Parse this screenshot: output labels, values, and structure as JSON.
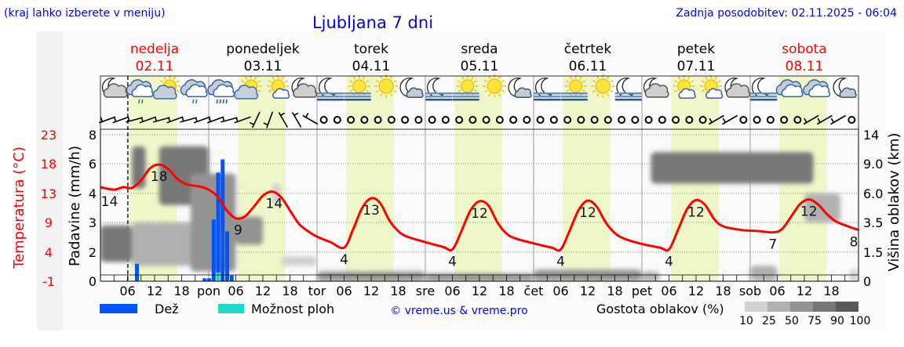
{
  "header": {
    "hint": "(kraj lahko izberete v meniju)",
    "title": "Ljubljana 7 dni",
    "updated": "Zadnja posodobitev: 02.11.2025 - 06:04"
  },
  "colors": {
    "temperature": "#ff0000",
    "rain": "#0055ff",
    "showers": "#20d8c8",
    "daylight": "#eff7c8",
    "weekend_day": "#ff0000",
    "link": "#0000ff"
  },
  "chart_data": {
    "type": "meteogram",
    "days": [
      {
        "name": "nedelja",
        "date": "02.11",
        "abbr": "",
        "weekend": true
      },
      {
        "name": "ponedeljek",
        "date": "03.11",
        "abbr": "pon",
        "weekend": false
      },
      {
        "name": "torek",
        "date": "04.11",
        "abbr": "tor",
        "weekend": false
      },
      {
        "name": "sreda",
        "date": "05.11",
        "abbr": "sre",
        "weekend": false
      },
      {
        "name": "četrtek",
        "date": "06.11",
        "abbr": "čet",
        "weekend": false
      },
      {
        "name": "petek",
        "date": "07.11",
        "abbr": "pet",
        "weekend": false
      },
      {
        "name": "sobota",
        "date": "08.11",
        "abbr": "sob",
        "weekend": true
      }
    ],
    "hour_ticks": [
      "06",
      "12",
      "18"
    ],
    "now_hour": 6.07,
    "daylight_hours": [
      6.5,
      17
    ],
    "axes": {
      "temperature": {
        "label": "Temperatura (°C)",
        "ticks": [
          -1,
          4,
          9,
          13,
          18,
          23
        ]
      },
      "precipitation": {
        "label": "Padavine (mm/h)",
        "ticks": [
          0,
          2,
          3,
          4,
          6,
          8
        ]
      },
      "cloud_height": {
        "label": "Višina oblakov (km)",
        "ticks": [
          "0",
          "1.5",
          "3.5",
          "6.0",
          "9.0",
          "14"
        ]
      }
    },
    "temperature_series": [
      [
        0,
        14.4
      ],
      [
        3,
        14.0
      ],
      [
        5,
        14.4
      ],
      [
        7,
        14.3
      ],
      [
        9,
        15.5
      ],
      [
        11,
        17.5
      ],
      [
        13,
        18.1
      ],
      [
        15,
        17.4
      ],
      [
        17,
        15.8
      ],
      [
        19,
        14.9
      ],
      [
        22,
        14.5
      ],
      [
        24,
        14.0
      ],
      [
        26,
        12.8
      ],
      [
        28,
        10.6
      ],
      [
        30,
        9.3
      ],
      [
        32,
        9.6
      ],
      [
        34,
        11.2
      ],
      [
        36,
        13.0
      ],
      [
        38,
        13.7
      ],
      [
        40,
        12.8
      ],
      [
        42,
        10.6
      ],
      [
        44,
        8.4
      ],
      [
        46,
        7.2
      ],
      [
        48,
        6.3
      ],
      [
        51,
        5.4
      ],
      [
        54,
        4.5
      ],
      [
        56,
        7.5
      ],
      [
        58,
        11.0
      ],
      [
        60,
        12.6
      ],
      [
        62,
        11.8
      ],
      [
        64,
        9.0
      ],
      [
        66,
        7.2
      ],
      [
        68,
        6.3
      ],
      [
        72,
        5.4
      ],
      [
        76,
        4.6
      ],
      [
        78,
        4.2
      ],
      [
        80,
        7.2
      ],
      [
        82,
        10.6
      ],
      [
        84,
        12.1
      ],
      [
        86,
        11.4
      ],
      [
        88,
        8.6
      ],
      [
        90,
        6.8
      ],
      [
        92,
        6.0
      ],
      [
        96,
        5.2
      ],
      [
        100,
        4.5
      ],
      [
        102,
        4.2
      ],
      [
        104,
        7.3
      ],
      [
        106,
        10.7
      ],
      [
        108,
        12.2
      ],
      [
        110,
        11.2
      ],
      [
        112,
        8.6
      ],
      [
        114,
        6.9
      ],
      [
        116,
        6.0
      ],
      [
        120,
        5.1
      ],
      [
        124,
        4.5
      ],
      [
        126,
        4.2
      ],
      [
        128,
        7.4
      ],
      [
        130,
        10.8
      ],
      [
        132,
        12.3
      ],
      [
        134,
        11.5
      ],
      [
        136,
        9.2
      ],
      [
        138,
        8.0
      ],
      [
        142,
        7.4
      ],
      [
        146,
        7.2
      ],
      [
        149,
        7.0
      ],
      [
        151,
        7.5
      ],
      [
        153,
        9.5
      ],
      [
        155,
        11.6
      ],
      [
        157,
        12.4
      ],
      [
        159,
        11.6
      ],
      [
        161,
        10.0
      ],
      [
        163,
        8.8
      ],
      [
        166,
        7.9
      ],
      [
        168,
        7.4
      ]
    ],
    "temperature_labels": [
      {
        "hour": 2,
        "value": "14",
        "pos": "below"
      },
      {
        "hour": 13,
        "value": "18",
        "pos": "below"
      },
      {
        "hour": 30.5,
        "value": "9",
        "pos": "below"
      },
      {
        "hour": 38.5,
        "value": "14",
        "pos": "below"
      },
      {
        "hour": 54,
        "value": "4",
        "pos": "below"
      },
      {
        "hour": 60,
        "value": "13",
        "pos": "below"
      },
      {
        "hour": 78,
        "value": "4",
        "pos": "below"
      },
      {
        "hour": 84,
        "value": "12",
        "pos": "below"
      },
      {
        "hour": 102,
        "value": "4",
        "pos": "below"
      },
      {
        "hour": 108,
        "value": "12",
        "pos": "below"
      },
      {
        "hour": 126,
        "value": "4",
        "pos": "below"
      },
      {
        "hour": 132,
        "value": "12",
        "pos": "below"
      },
      {
        "hour": 149,
        "value": "7",
        "pos": "below"
      },
      {
        "hour": 157,
        "value": "12",
        "pos": "below"
      },
      {
        "hour": 167.5,
        "value": "8",
        "pos": "below"
      }
    ],
    "rain_series": [
      [
        8,
        1.2
      ],
      [
        23,
        0.2
      ],
      [
        24,
        0.2
      ],
      [
        25,
        3.1
      ],
      [
        26,
        5.4
      ],
      [
        27,
        6.3
      ],
      [
        28,
        2.7
      ],
      [
        29,
        0.4
      ]
    ],
    "showers_series": [
      [
        26,
        0.6
      ]
    ],
    "clouds": [
      [
        0,
        7,
        1.0,
        3.3,
        90
      ],
      [
        7,
        10,
        6.5,
        12,
        90
      ],
      [
        7,
        24,
        0.8,
        3.5,
        50
      ],
      [
        13,
        24,
        5,
        12,
        90
      ],
      [
        20,
        30,
        0.5,
        8,
        75
      ],
      [
        30,
        36,
        2,
        4,
        75
      ],
      [
        38,
        40,
        5,
        7,
        25
      ],
      [
        40,
        48,
        0.8,
        1.3,
        25
      ],
      [
        48,
        72,
        0,
        0.5,
        75
      ],
      [
        72,
        96,
        0,
        0.4,
        75
      ],
      [
        96,
        120,
        0,
        0.6,
        75
      ],
      [
        120,
        124,
        0,
        0.5,
        50
      ],
      [
        122,
        158,
        7,
        11,
        90
      ],
      [
        144,
        150,
        0,
        0.8,
        50
      ],
      [
        156,
        164,
        3.5,
        6,
        50
      ],
      [
        166,
        168,
        0,
        0.6,
        25
      ]
    ],
    "weather_icons": [
      "moon-cloud",
      "cloud-light-rain",
      "sun-cloud",
      "cloud-light-rain",
      "cloud-heavy-rain",
      "sun-cloud",
      "sun-small-cloud",
      "moon-cloud",
      "moon-fog",
      "sun-fog",
      "sun",
      "moon-small-cloud",
      "moon-fog",
      "sun-fog",
      "sun",
      "moon-small-cloud",
      "moon-fog",
      "sun-fog",
      "sun",
      "moon-fog",
      "moon-cloud",
      "sun-small-cloud",
      "sun-small-cloud",
      "moon-cloud",
      "moon-fog",
      "cloud",
      "cloud",
      "moon-small-cloud"
    ],
    "wind_directions": [
      250,
      250,
      255,
      250,
      255,
      250,
      255,
      250,
      250,
      255,
      250,
      205,
      200,
      330,
      330,
      300,
      "calm",
      "calm",
      "calm",
      "calm",
      "calm",
      "calm",
      "calm",
      "calm",
      "calm",
      "calm",
      "calm",
      "calm",
      "calm",
      "calm",
      "calm",
      "calm",
      "calm",
      "calm",
      "calm",
      "calm",
      "calm",
      "calm",
      "calm",
      "calm",
      "calm",
      "calm",
      "calm",
      "calm",
      "calm",
      240,
      240,
      "calm",
      "calm",
      "calm",
      "calm",
      "calm",
      240,
      240,
      240,
      "calm"
    ],
    "legend": {
      "rain": "Dež",
      "showers": "Možnost ploh",
      "copyright": "© vreme.us & vreme.pro",
      "cloud_density": "Gostota oblakov (%)",
      "density_ticks": [
        "10",
        "25",
        "50",
        "75",
        "90",
        "100"
      ],
      "density_colors": [
        "#d0d0d0",
        "#b0b0b0",
        "#939393",
        "#777777",
        "#5a5a5a"
      ]
    }
  }
}
